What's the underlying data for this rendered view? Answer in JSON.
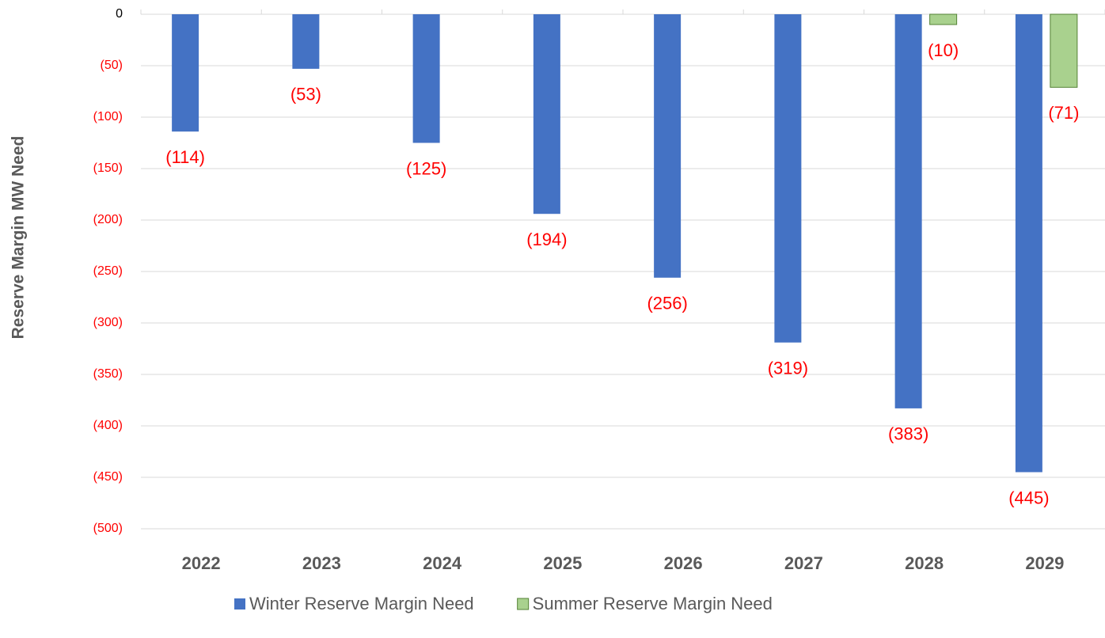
{
  "chart_data": {
    "type": "bar",
    "y_label": "Reserve Margin MW Need",
    "categories": [
      "2022",
      "2023",
      "2024",
      "2025",
      "2026",
      "2027",
      "2028",
      "2029"
    ],
    "series": [
      {
        "name": "Winter Reserve Margin Need",
        "color": "#4472c4",
        "values": [
          -114,
          -53,
          -125,
          -194,
          -256,
          -319,
          -383,
          -445
        ],
        "value_labels": [
          "(114)",
          "(53)",
          "(125)",
          "(194)",
          "(256)",
          "(319)",
          "(383)",
          "(445)"
        ]
      },
      {
        "name": "Summer Reserve Margin Need",
        "color": "#a9d18e",
        "edge_color": "#548235",
        "values": [
          null,
          null,
          null,
          null,
          null,
          null,
          -10,
          -71
        ],
        "value_labels": [
          null,
          null,
          null,
          null,
          null,
          null,
          "(10)",
          "(71)"
        ]
      }
    ],
    "ylim": [
      -500,
      0
    ],
    "yticks": [
      0,
      {
        "value": -50,
        "label": "(50)"
      },
      {
        "value": -100,
        "label": "(100)"
      },
      {
        "value": -150,
        "label": "(150)"
      },
      {
        "value": -200,
        "label": "(200)"
      },
      {
        "value": -250,
        "label": "(250)"
      },
      {
        "value": -300,
        "label": "(300)"
      },
      {
        "value": -350,
        "label": "(350)"
      },
      {
        "value": -400,
        "label": "(400)"
      },
      {
        "value": -450,
        "label": "(450)"
      },
      {
        "value": -500,
        "label": "(500)"
      }
    ],
    "grid": true,
    "legend": "bottom"
  }
}
